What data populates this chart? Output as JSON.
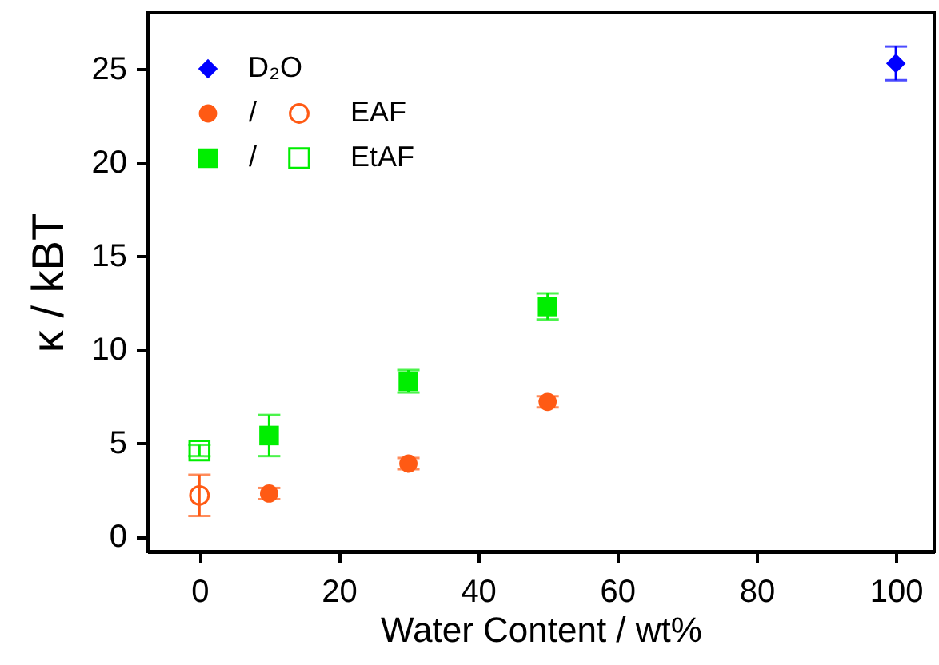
{
  "chart_data": {
    "type": "scatter",
    "xlabel": "Water Content / wt%",
    "ylabel": "κ / kBT",
    "xlim": [
      -7.5,
      105.5
    ],
    "ylim": [
      -0.8,
      28
    ],
    "xticks": [
      0,
      20,
      40,
      60,
      80,
      100
    ],
    "yticks": [
      0,
      5,
      10,
      15,
      20,
      25
    ],
    "legend": "top left",
    "grid": false,
    "annotations": [
      "/",
      "/"
    ],
    "series": [
      {
        "name": "D₂O",
        "color": "#0000ff",
        "marker": "diamond",
        "x": [
          100
        ],
        "values": [
          25.3
        ],
        "errors": [
          0.9
        ]
      },
      {
        "name": "EAF",
        "color": "#ff5a14",
        "marker": "circle",
        "x": [
          10,
          30,
          50
        ],
        "values": [
          2.3,
          3.9,
          7.2
        ],
        "errors": [
          0.3,
          0.3,
          0.3
        ]
      },
      {
        "color": "#ff5a14",
        "marker": "circle",
        "x": [
          0
        ],
        "values": [
          2.2
        ],
        "errors": [
          [
            1.1,
            3.3
          ]
        ]
      },
      {
        "name": "EtAF",
        "color": "#00ee00",
        "marker": "square",
        "x": [
          10,
          30,
          50
        ],
        "values": [
          5.4,
          8.3,
          12.3
        ],
        "errors": [
          1.1,
          0.6,
          0.7
        ]
      },
      {
        "color": "#00ee00",
        "marker": "square",
        "x": [
          0
        ],
        "values": [
          4.6
        ],
        "errors": [
          0.3
        ]
      }
    ]
  }
}
